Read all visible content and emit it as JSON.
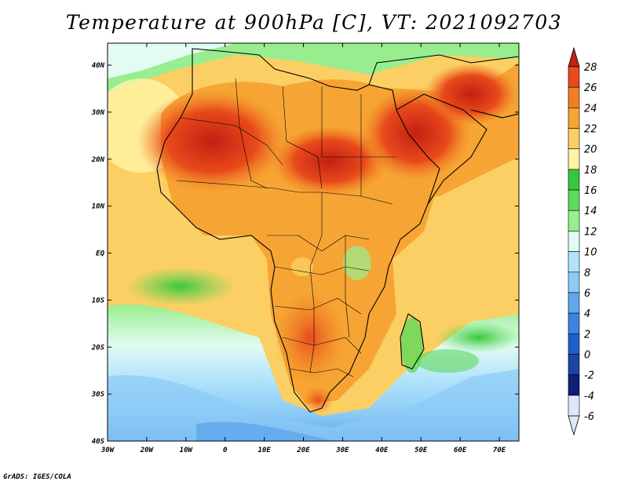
{
  "title": "Temperature at 900hPa [C], VT: 2021092703",
  "credit": "GrADS: IGES/COLA",
  "map": {
    "lon_ticks": [
      "30W",
      "20W",
      "10W",
      "0",
      "10E",
      "20E",
      "30E",
      "40E",
      "50E",
      "60E",
      "70E"
    ],
    "lat_ticks": [
      "40N",
      "30N",
      "20N",
      "10N",
      "EQ",
      "10S",
      "20S",
      "30S",
      "40S"
    ]
  },
  "colorbar": {
    "levels": [
      "28",
      "26",
      "24",
      "22",
      "20",
      "18",
      "16",
      "14",
      "12",
      "10",
      "8",
      "6",
      "4",
      "2",
      "0",
      "-2",
      "-4",
      "-6"
    ],
    "colors": [
      "#c31f12",
      "#e84a1b",
      "#f17e23",
      "#f6a534",
      "#fbcf63",
      "#fff4a6",
      "#36c83a",
      "#5ed95a",
      "#98ee8e",
      "#e2fbf3",
      "#b2e3fb",
      "#8ccbf6",
      "#5fa6ec",
      "#3b83e0",
      "#1e5ec9",
      "#1d43a8",
      "#0f1e78",
      "#dee6fb"
    ]
  },
  "colors": {
    "land_outline": "#000000",
    "frame": "#000000"
  }
}
